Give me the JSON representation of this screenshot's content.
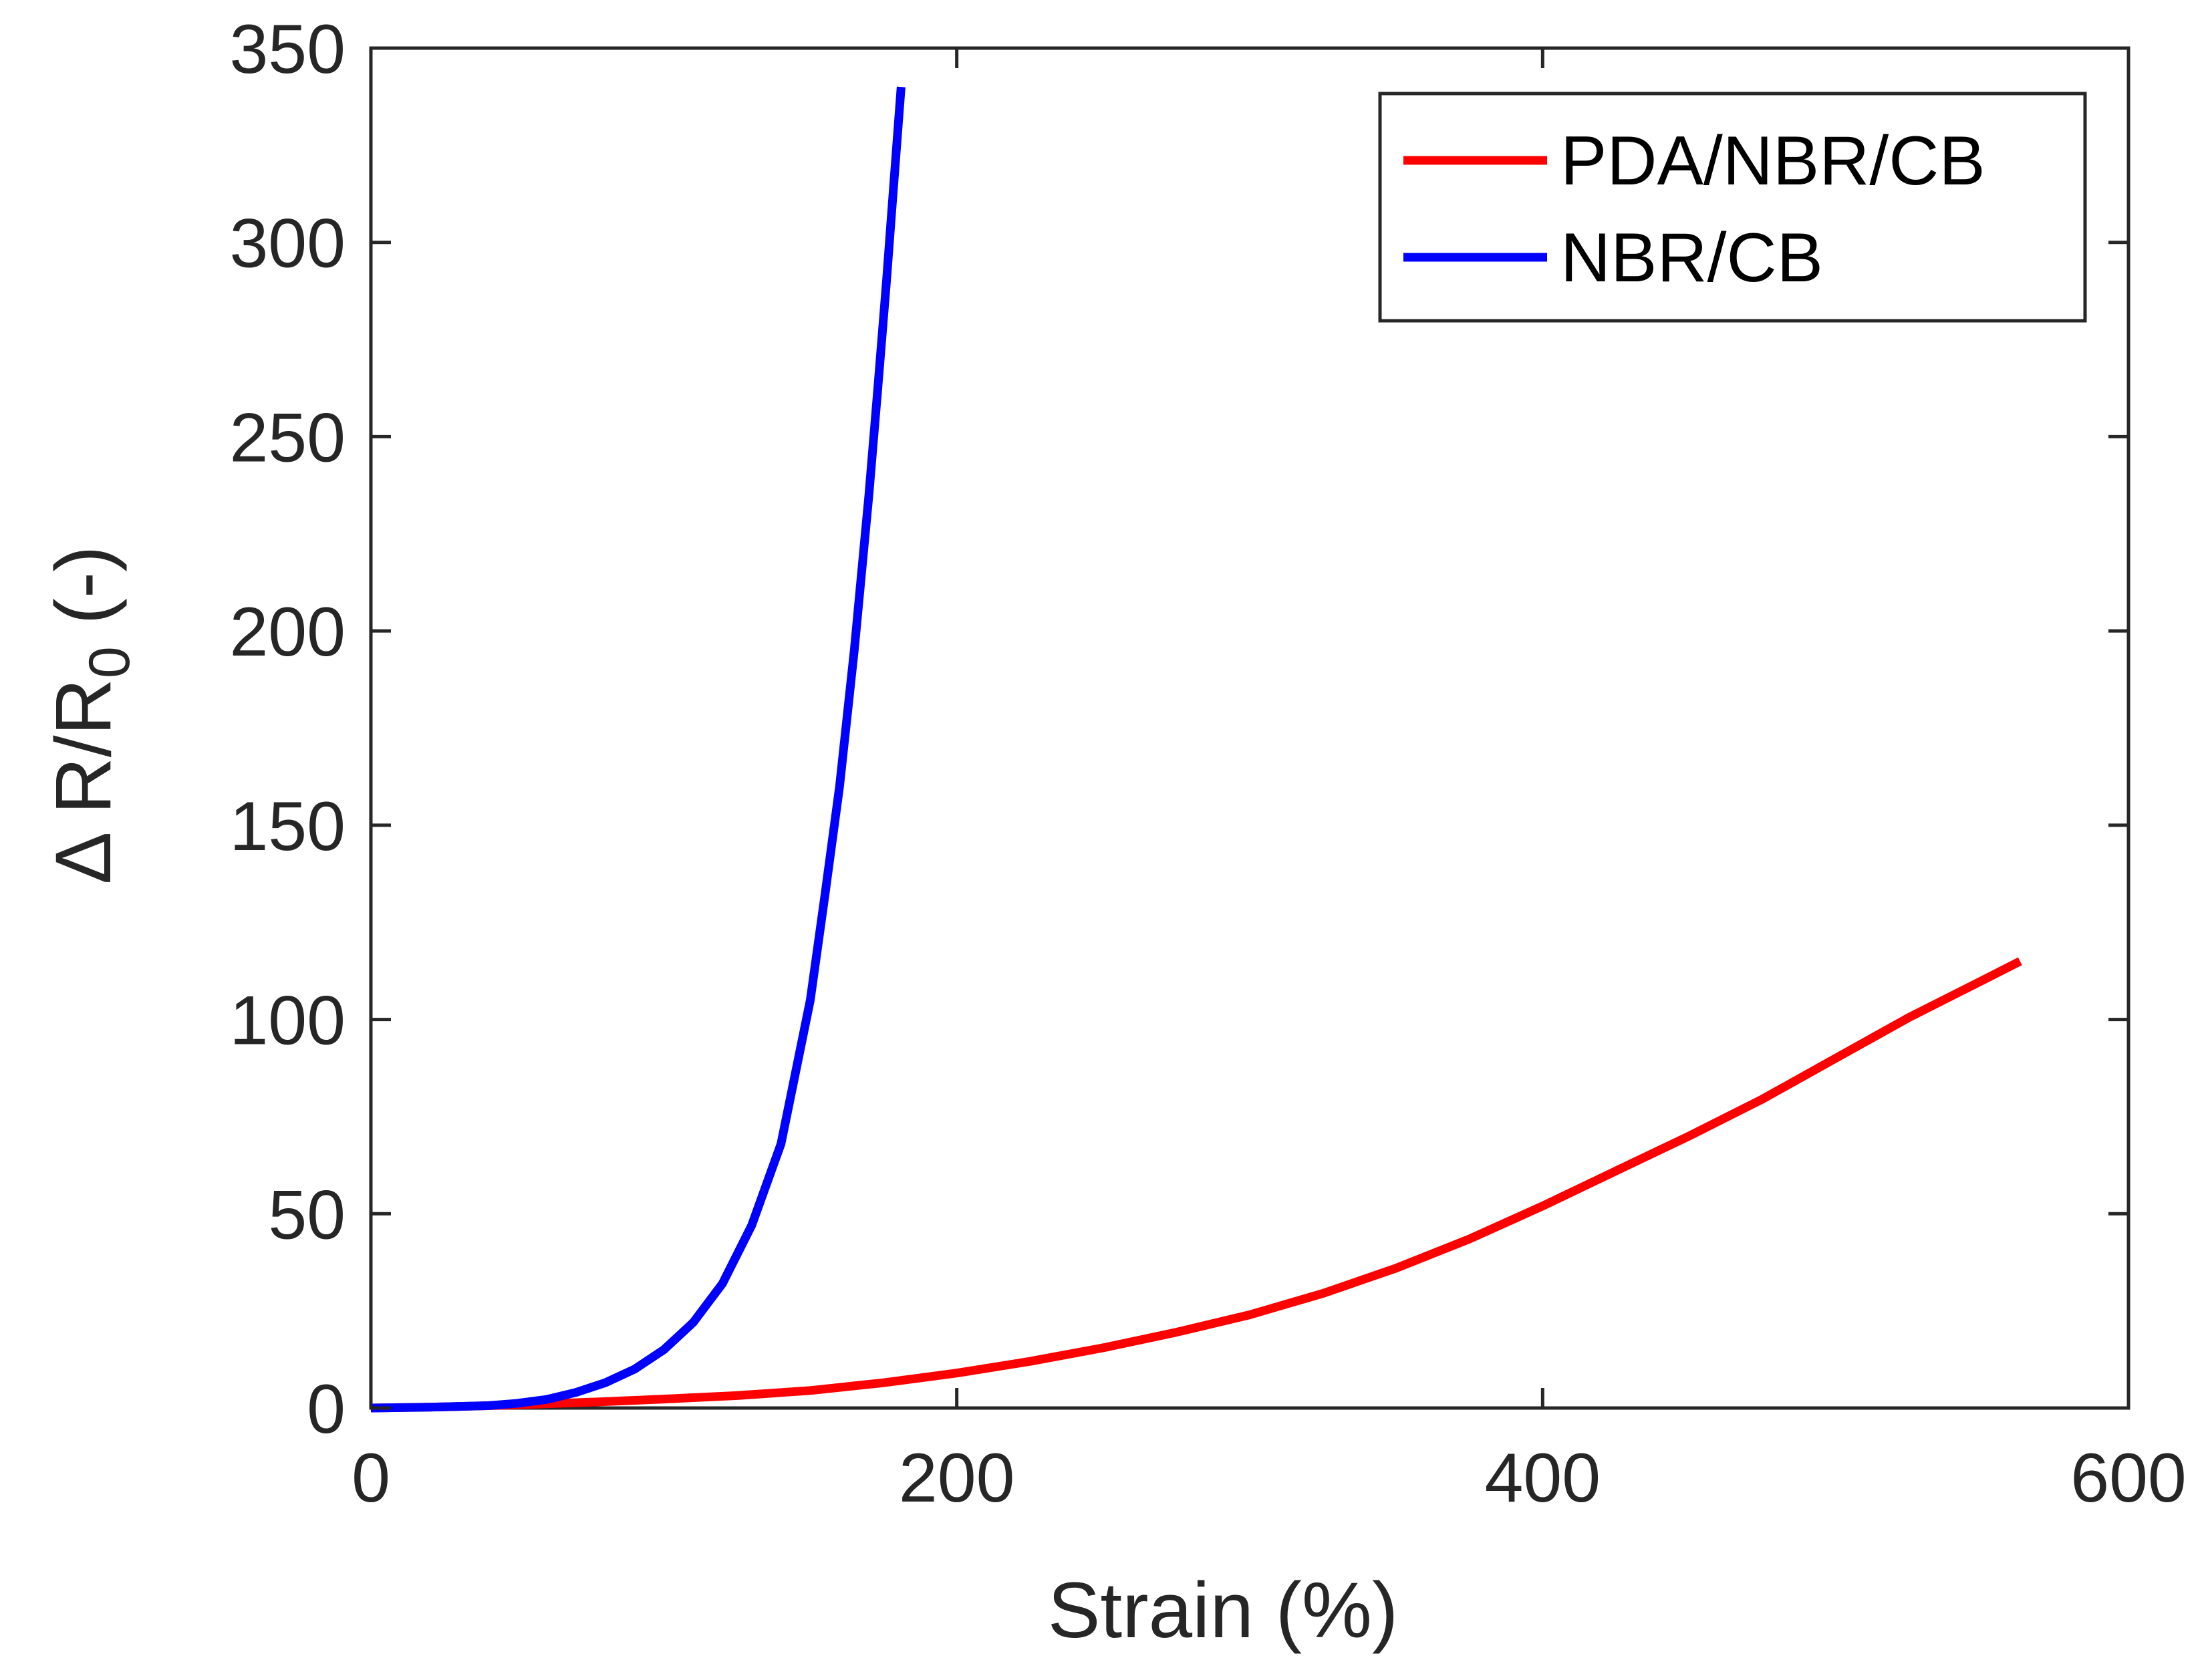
{
  "chart_data": {
    "type": "line",
    "title": "",
    "xlabel": "Strain (%)",
    "ylabel": {
      "prefix": "Δ R/R",
      "subscript": "0",
      "suffix": " (-)"
    },
    "xlim": [
      0,
      600
    ],
    "ylim": [
      0,
      350
    ],
    "xticks": [
      0,
      200,
      400,
      600
    ],
    "yticks": [
      0,
      50,
      100,
      150,
      200,
      250,
      300,
      350
    ],
    "xtick_labels": [
      "0",
      "200",
      "400",
      "600"
    ],
    "ytick_labels": [
      "0",
      "50",
      "100",
      "150",
      "200",
      "250",
      "300",
      "350"
    ],
    "grid": false,
    "legend_position": "top-right",
    "series": [
      {
        "name": "PDA/NBR/CB",
        "color": "#ff0000",
        "x": [
          0,
          25,
          50,
          75,
          100,
          125,
          150,
          175,
          200,
          225,
          250,
          275,
          300,
          325,
          350,
          375,
          400,
          425,
          450,
          475,
          500,
          525,
          550,
          563
        ],
        "y": [
          0,
          0.3,
          0.8,
          1.5,
          2.3,
          3.2,
          4.5,
          6.5,
          9,
          12,
          15.5,
          19.5,
          24,
          29.5,
          36,
          43.5,
          52,
          61,
          70,
          79.5,
          90,
          100.5,
          110,
          115
        ]
      },
      {
        "name": "NBR/CB",
        "color": "#0000ff",
        "x": [
          0,
          20,
          40,
          50,
          60,
          70,
          80,
          90,
          100,
          110,
          120,
          130,
          140,
          150,
          155,
          160,
          165,
          170,
          173,
          176,
          178,
          180,
          181
        ],
        "y": [
          0,
          0.2,
          0.6,
          1.2,
          2.2,
          4,
          6.5,
          10,
          15,
          22,
          32,
          47,
          68,
          105,
          132,
          160,
          195,
          235,
          262,
          290,
          310,
          330,
          340
        ]
      }
    ]
  }
}
